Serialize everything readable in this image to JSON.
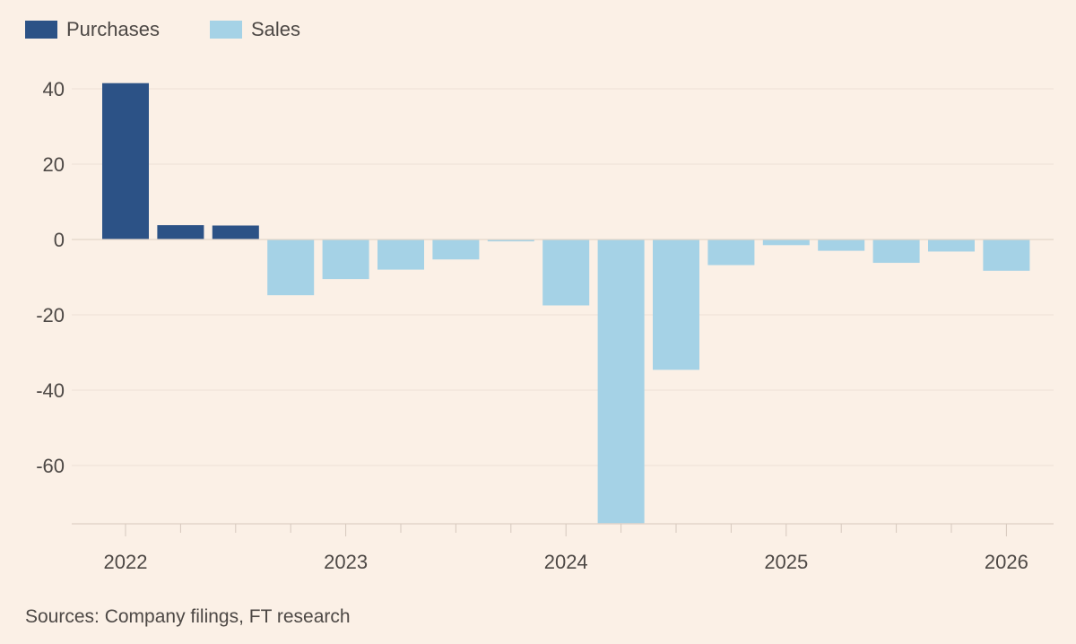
{
  "chart_data": {
    "type": "bar",
    "series": [
      {
        "name": "Purchases",
        "color": "#2c5286",
        "values": [
          41.5,
          3.8,
          3.7,
          null,
          null,
          null,
          null,
          null,
          null,
          null,
          null,
          null,
          null,
          null,
          null,
          null,
          null
        ]
      },
      {
        "name": "Sales",
        "color": "#a5d2e6",
        "values": [
          null,
          null,
          null,
          -14.8,
          -10.5,
          -8.0,
          -5.3,
          -0.5,
          -17.5,
          -75.5,
          -34.6,
          -6.8,
          -1.5,
          -3.0,
          -6.2,
          -3.2,
          -8.3
        ]
      }
    ],
    "x": [
      "2022 Q1",
      "2022 Q2",
      "2022 Q3",
      "2022 Q4",
      "2023 Q1",
      "2023 Q2",
      "2023 Q3",
      "2023 Q4",
      "2024 Q1",
      "2024 Q2",
      "2024 Q3",
      "2024 Q4",
      "2025 Q1",
      "2025 Q2",
      "2025 Q3",
      "2025 Q4",
      "2026 Q1"
    ],
    "xticks": [
      "2022",
      "2023",
      "2024",
      "2025",
      "2026"
    ],
    "yticks": [
      40,
      20,
      0,
      -20,
      -40,
      -60
    ],
    "ylim": [
      -75.5,
      45
    ],
    "grid": true,
    "legend_position": "top-left"
  },
  "legend": {
    "purchases_label": "Purchases",
    "sales_label": "Sales"
  },
  "footer": {
    "source": "Sources: Company filings, FT research"
  }
}
